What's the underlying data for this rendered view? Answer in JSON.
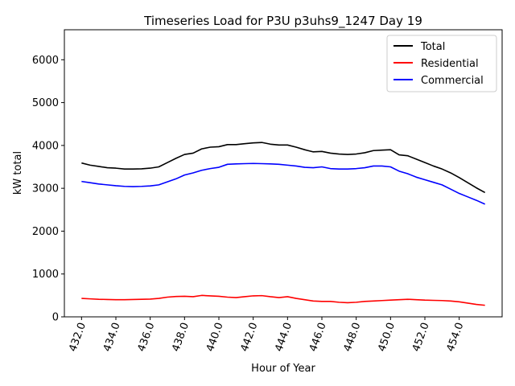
{
  "chart_data": {
    "type": "line",
    "title": "Timeseries Load for P3U p3uhs9_1247  Day 19",
    "xlabel": "Hour of Year",
    "ylabel": "kW total",
    "xlim": [
      431.0,
      456.5
    ],
    "ylim": [
      0,
      6700
    ],
    "xticks": [
      432.0,
      434.0,
      436.0,
      438.0,
      440.0,
      442.0,
      444.0,
      446.0,
      448.0,
      450.0,
      452.0,
      454.0
    ],
    "xtick_labels": [
      "432.0",
      "434.0",
      "436.0",
      "438.0",
      "440.0",
      "442.0",
      "444.0",
      "446.0",
      "448.0",
      "450.0",
      "452.0",
      "454.0"
    ],
    "yticks": [
      0,
      1000,
      2000,
      3000,
      4000,
      5000,
      6000
    ],
    "ytick_labels": [
      "0",
      "1000",
      "2000",
      "3000",
      "4000",
      "5000",
      "6000"
    ],
    "legend_position": "top-right",
    "x": [
      432.0,
      432.5,
      433.0,
      433.5,
      434.0,
      434.5,
      435.0,
      435.5,
      436.0,
      436.5,
      437.0,
      437.5,
      438.0,
      438.5,
      439.0,
      439.5,
      440.0,
      440.5,
      441.0,
      441.5,
      442.0,
      442.5,
      443.0,
      443.5,
      444.0,
      444.5,
      445.0,
      445.5,
      446.0,
      446.5,
      447.0,
      447.5,
      448.0,
      448.5,
      449.0,
      449.5,
      450.0,
      450.5,
      451.0,
      451.5,
      452.0,
      452.5,
      453.0,
      453.5,
      454.0,
      454.5,
      455.0,
      455.5
    ],
    "series": [
      {
        "name": "Total",
        "color": "#000000",
        "values": [
          3590,
          3540,
          3510,
          3480,
          3470,
          3450,
          3450,
          3455,
          3470,
          3500,
          3600,
          3700,
          3790,
          3820,
          3920,
          3960,
          3970,
          4020,
          4020,
          4040,
          4060,
          4070,
          4030,
          4010,
          4010,
          3960,
          3900,
          3850,
          3860,
          3820,
          3800,
          3790,
          3800,
          3830,
          3880,
          3890,
          3900,
          3780,
          3760,
          3680,
          3600,
          3520,
          3450,
          3360,
          3250,
          3130,
          3010,
          2900
        ]
      },
      {
        "name": "Residential",
        "color": "#ff0000",
        "values": [
          430,
          420,
          410,
          405,
          400,
          400,
          405,
          410,
          415,
          430,
          460,
          475,
          480,
          470,
          500,
          490,
          480,
          460,
          450,
          470,
          490,
          495,
          470,
          450,
          470,
          430,
          400,
          370,
          360,
          360,
          340,
          330,
          340,
          360,
          370,
          380,
          390,
          400,
          410,
          400,
          390,
          385,
          380,
          370,
          350,
          320,
          290,
          270
        ]
      },
      {
        "name": "Commercial",
        "color": "#0000ff",
        "values": [
          3160,
          3130,
          3100,
          3080,
          3060,
          3045,
          3040,
          3045,
          3055,
          3080,
          3150,
          3220,
          3310,
          3360,
          3420,
          3460,
          3490,
          3560,
          3570,
          3575,
          3580,
          3575,
          3570,
          3560,
          3540,
          3520,
          3490,
          3480,
          3500,
          3460,
          3450,
          3450,
          3460,
          3480,
          3520,
          3520,
          3500,
          3400,
          3340,
          3260,
          3200,
          3140,
          3080,
          2980,
          2880,
          2800,
          2720,
          2630
        ]
      }
    ]
  }
}
